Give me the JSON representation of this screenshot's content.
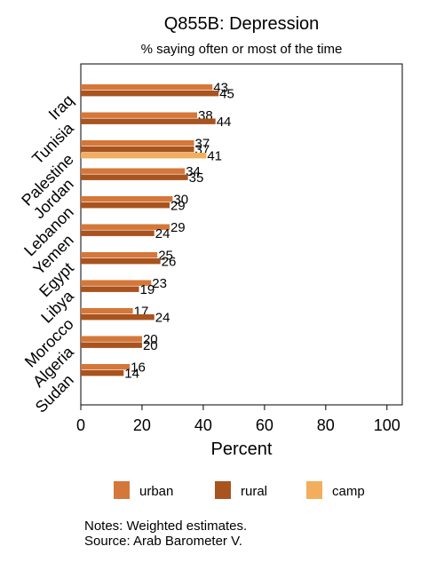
{
  "chart_data": {
    "type": "bar",
    "title": "Q855B: Depression",
    "subtitle": "% saying often or most of the time",
    "xlabel": "Percent",
    "ylabel": "",
    "xlim": [
      0,
      105
    ],
    "xticks": [
      0,
      20,
      40,
      60,
      80,
      100
    ],
    "categories": [
      "Iraq",
      "Tunisia",
      "Palestine",
      "Jordan",
      "Lebanon",
      "Yemen",
      "Egypt",
      "Libya",
      "Morocco",
      "Algeria",
      "Sudan"
    ],
    "series": [
      {
        "name": "urban",
        "color": "#d4773a",
        "values": [
          43,
          38,
          37,
          34,
          30,
          29,
          25,
          23,
          17,
          20,
          16
        ]
      },
      {
        "name": "rural",
        "color": "#a9531f",
        "values": [
          45,
          44,
          37,
          35,
          29,
          24,
          26,
          19,
          24,
          20,
          14
        ]
      },
      {
        "name": "camp",
        "color": "#f2ae5c",
        "values": [
          null,
          null,
          41,
          null,
          null,
          null,
          null,
          null,
          null,
          null,
          null
        ]
      }
    ],
    "grid": false,
    "legend_position": "bottom",
    "notes": [
      "Notes: Weighted estimates.",
      "Source: Arab Barometer V."
    ]
  }
}
